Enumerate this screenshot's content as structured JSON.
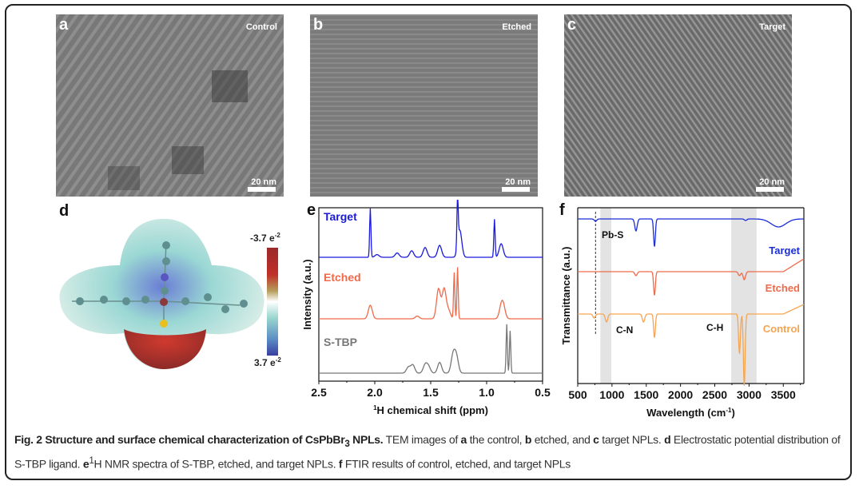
{
  "tem_panels": [
    {
      "letter": "a",
      "label": "Control",
      "scale_bar": "20 nm"
    },
    {
      "letter": "b",
      "label": "Etched",
      "scale_bar": "20 nm"
    },
    {
      "letter": "c",
      "label": "Target",
      "scale_bar": "20 nm"
    }
  ],
  "panel_d": {
    "letter": "d",
    "colorbar_top": "-3.7 e",
    "colorbar_top_exp": "-2",
    "colorbar_bottom": "3.7 e",
    "colorbar_bottom_exp": "-2",
    "colors": {
      "negative": "#c0302a",
      "neutral": "#ffffff",
      "positive": "#3a3ea0"
    }
  },
  "chart_data": [
    {
      "type": "line",
      "panel": "e",
      "title": "",
      "xlabel_sup": "1",
      "xlabel": "H chemical shift (ppm)",
      "ylabel": "Intensity (a.u.)",
      "xlim": [
        2.5,
        0.5
      ],
      "xticks": [
        "2.5",
        "2.0",
        "1.5",
        "1.0",
        "0.5"
      ],
      "x_reversed": true,
      "series": [
        {
          "name": "Target",
          "color": "#1a1adb",
          "offset": 2,
          "peaks": [
            [
              2.04,
              0.9
            ],
            [
              1.98,
              0.05
            ],
            [
              1.8,
              0.08
            ],
            [
              1.67,
              0.12
            ],
            [
              1.55,
              0.18
            ],
            [
              1.42,
              0.22
            ],
            [
              1.26,
              0.9
            ],
            [
              1.24,
              0.5
            ],
            [
              0.93,
              0.7
            ],
            [
              0.87,
              0.25
            ]
          ]
        },
        {
          "name": "Etched",
          "color": "#ef6a4a",
          "offset": 1,
          "peaks": [
            [
              2.04,
              0.25
            ],
            [
              1.62,
              0.05
            ],
            [
              1.43,
              0.55
            ],
            [
              1.38,
              0.55
            ],
            [
              1.34,
              0.15
            ],
            [
              1.29,
              0.85
            ],
            [
              1.26,
              0.95
            ],
            [
              0.87,
              0.2
            ],
            [
              0.85,
              0.2
            ]
          ]
        },
        {
          "name": "S-TBP",
          "color": "#777777",
          "offset": 0,
          "peaks": [
            [
              1.7,
              0.18
            ],
            [
              1.66,
              0.25
            ],
            [
              1.55,
              0.25
            ],
            [
              1.52,
              0.2
            ],
            [
              1.42,
              0.33
            ],
            [
              1.3,
              0.55
            ],
            [
              1.27,
              0.5
            ],
            [
              0.82,
              1.5
            ],
            [
              0.79,
              1.3
            ]
          ]
        }
      ]
    },
    {
      "type": "line",
      "panel": "f",
      "title": "",
      "xlabel": "Wavelength (cm",
      "xlabel_sup": "-1",
      "xlabel_end": ")",
      "ylabel": "Transmittance (a.u.)",
      "xlim": [
        500,
        3800
      ],
      "xticks": [
        "500",
        "1000",
        "1500",
        "2000",
        "2500",
        "3000",
        "3500"
      ],
      "shaded_regions": [
        [
          830,
          990
        ],
        [
          2740,
          3110
        ]
      ],
      "dashed_line_x": 760,
      "annotations": [
        "Pb-S",
        "C-N",
        "C-H"
      ],
      "series": [
        {
          "name": "Target",
          "color": "#1a2fd6",
          "offset": 2,
          "dips": [
            [
              760,
              0.03
            ],
            [
              1350,
              0.15
            ],
            [
              1620,
              0.35
            ],
            [
              2950,
              0.02
            ],
            [
              3430,
              0.1
            ]
          ]
        },
        {
          "name": "Etched",
          "color": "#ef6a4a",
          "offset": 1,
          "dips": [
            [
              1350,
              0.05
            ],
            [
              1620,
              0.3
            ],
            [
              2860,
              0.05
            ],
            [
              2930,
              0.1
            ]
          ],
          "rise_end": 0.2
        },
        {
          "name": "Control",
          "color": "#f7a451",
          "offset": 0,
          "dips": [
            [
              740,
              0.05
            ],
            [
              920,
              0.1
            ],
            [
              1460,
              0.1
            ],
            [
              1620,
              0.3
            ],
            [
              2860,
              0.5
            ],
            [
              2930,
              0.9
            ]
          ],
          "rise_end": 0.15
        }
      ]
    }
  ],
  "caption": {
    "fig_label": "Fig. 2 Structure and surface chemical characterization of CsPbBr",
    "fig_sub": "3",
    "fig_label_end": " NPLs.",
    "t1": " TEM images of ",
    "a": "a",
    "t2": " the control, ",
    "b": "b",
    "t3": " etched, and ",
    "c": "c",
    "t4": " target NPLs. ",
    "d": "d",
    "t5": " Electrostatic potential distribution of S-TBP ligand. ",
    "e": "e",
    "e_sup": "1",
    "t6": "H NMR spectra of S-TBP, etched, and target NPLs. ",
    "f": "f",
    "t7": " FTIR results of control, etched, and target NPLs"
  }
}
